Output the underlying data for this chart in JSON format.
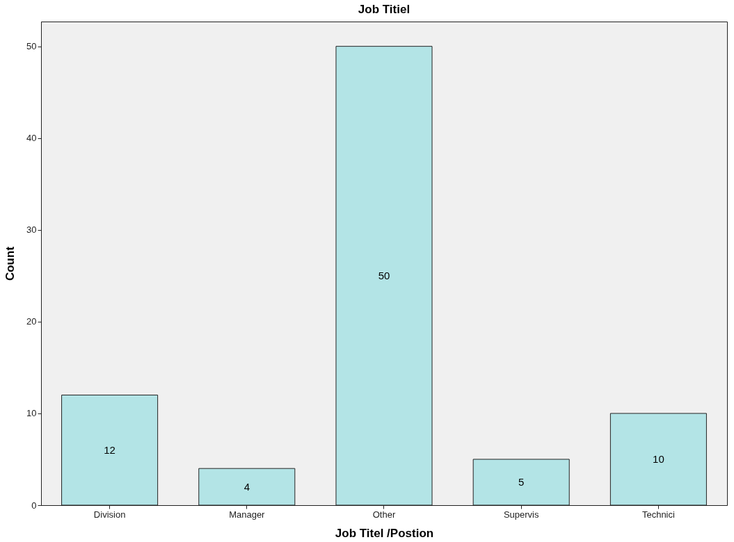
{
  "chart_data": {
    "type": "bar",
    "title": "Job Titiel",
    "xlabel": "Job Titel /Postion",
    "ylabel": "Count",
    "categories": [
      "Division",
      "Manager",
      "Other",
      "Supervis",
      "Technici"
    ],
    "values": [
      12,
      4,
      50,
      5,
      10
    ],
    "color": "#b3e4e6",
    "ylim": [
      0,
      52.7
    ],
    "yticks": [
      0,
      10,
      20,
      30,
      40,
      50
    ],
    "grid": false,
    "data_labels": true
  }
}
